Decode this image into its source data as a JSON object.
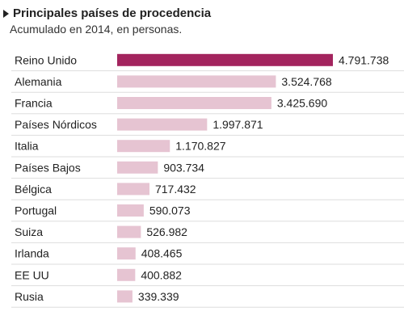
{
  "header": {
    "title": "Principales países de procedencia",
    "subtitle": "Acumulado en 2014, en personas."
  },
  "colors": {
    "highlight": "#a3245e",
    "bar": "#e6c4d2",
    "row_separator": "#dddddd"
  },
  "chart_data": {
    "type": "bar",
    "orientation": "horizontal",
    "title": "Principales países de procedencia",
    "subtitle": "Acumulado en 2014, en personas.",
    "categories": [
      "Reino Unido",
      "Alemania",
      "Francia",
      "Países Nórdicos",
      "Italia",
      "Países Bajos",
      "Bélgica",
      "Portugal",
      "Suiza",
      "Irlanda",
      "EE UU",
      "Rusia"
    ],
    "values": [
      4791738,
      3524768,
      3425690,
      1997871,
      1170827,
      903734,
      717432,
      590073,
      526982,
      408465,
      400882,
      339339
    ],
    "value_labels": [
      "4.791.738",
      "3.524.768",
      "3.425.690",
      "1.997.871",
      "1.170.827",
      "903.734",
      "717.432",
      "590.073",
      "526.982",
      "408.465",
      "400.882",
      "339.339"
    ],
    "highlighted_category": "Reino Unido",
    "xlim": [
      0,
      4791738
    ],
    "grid": false,
    "legend": "none"
  }
}
